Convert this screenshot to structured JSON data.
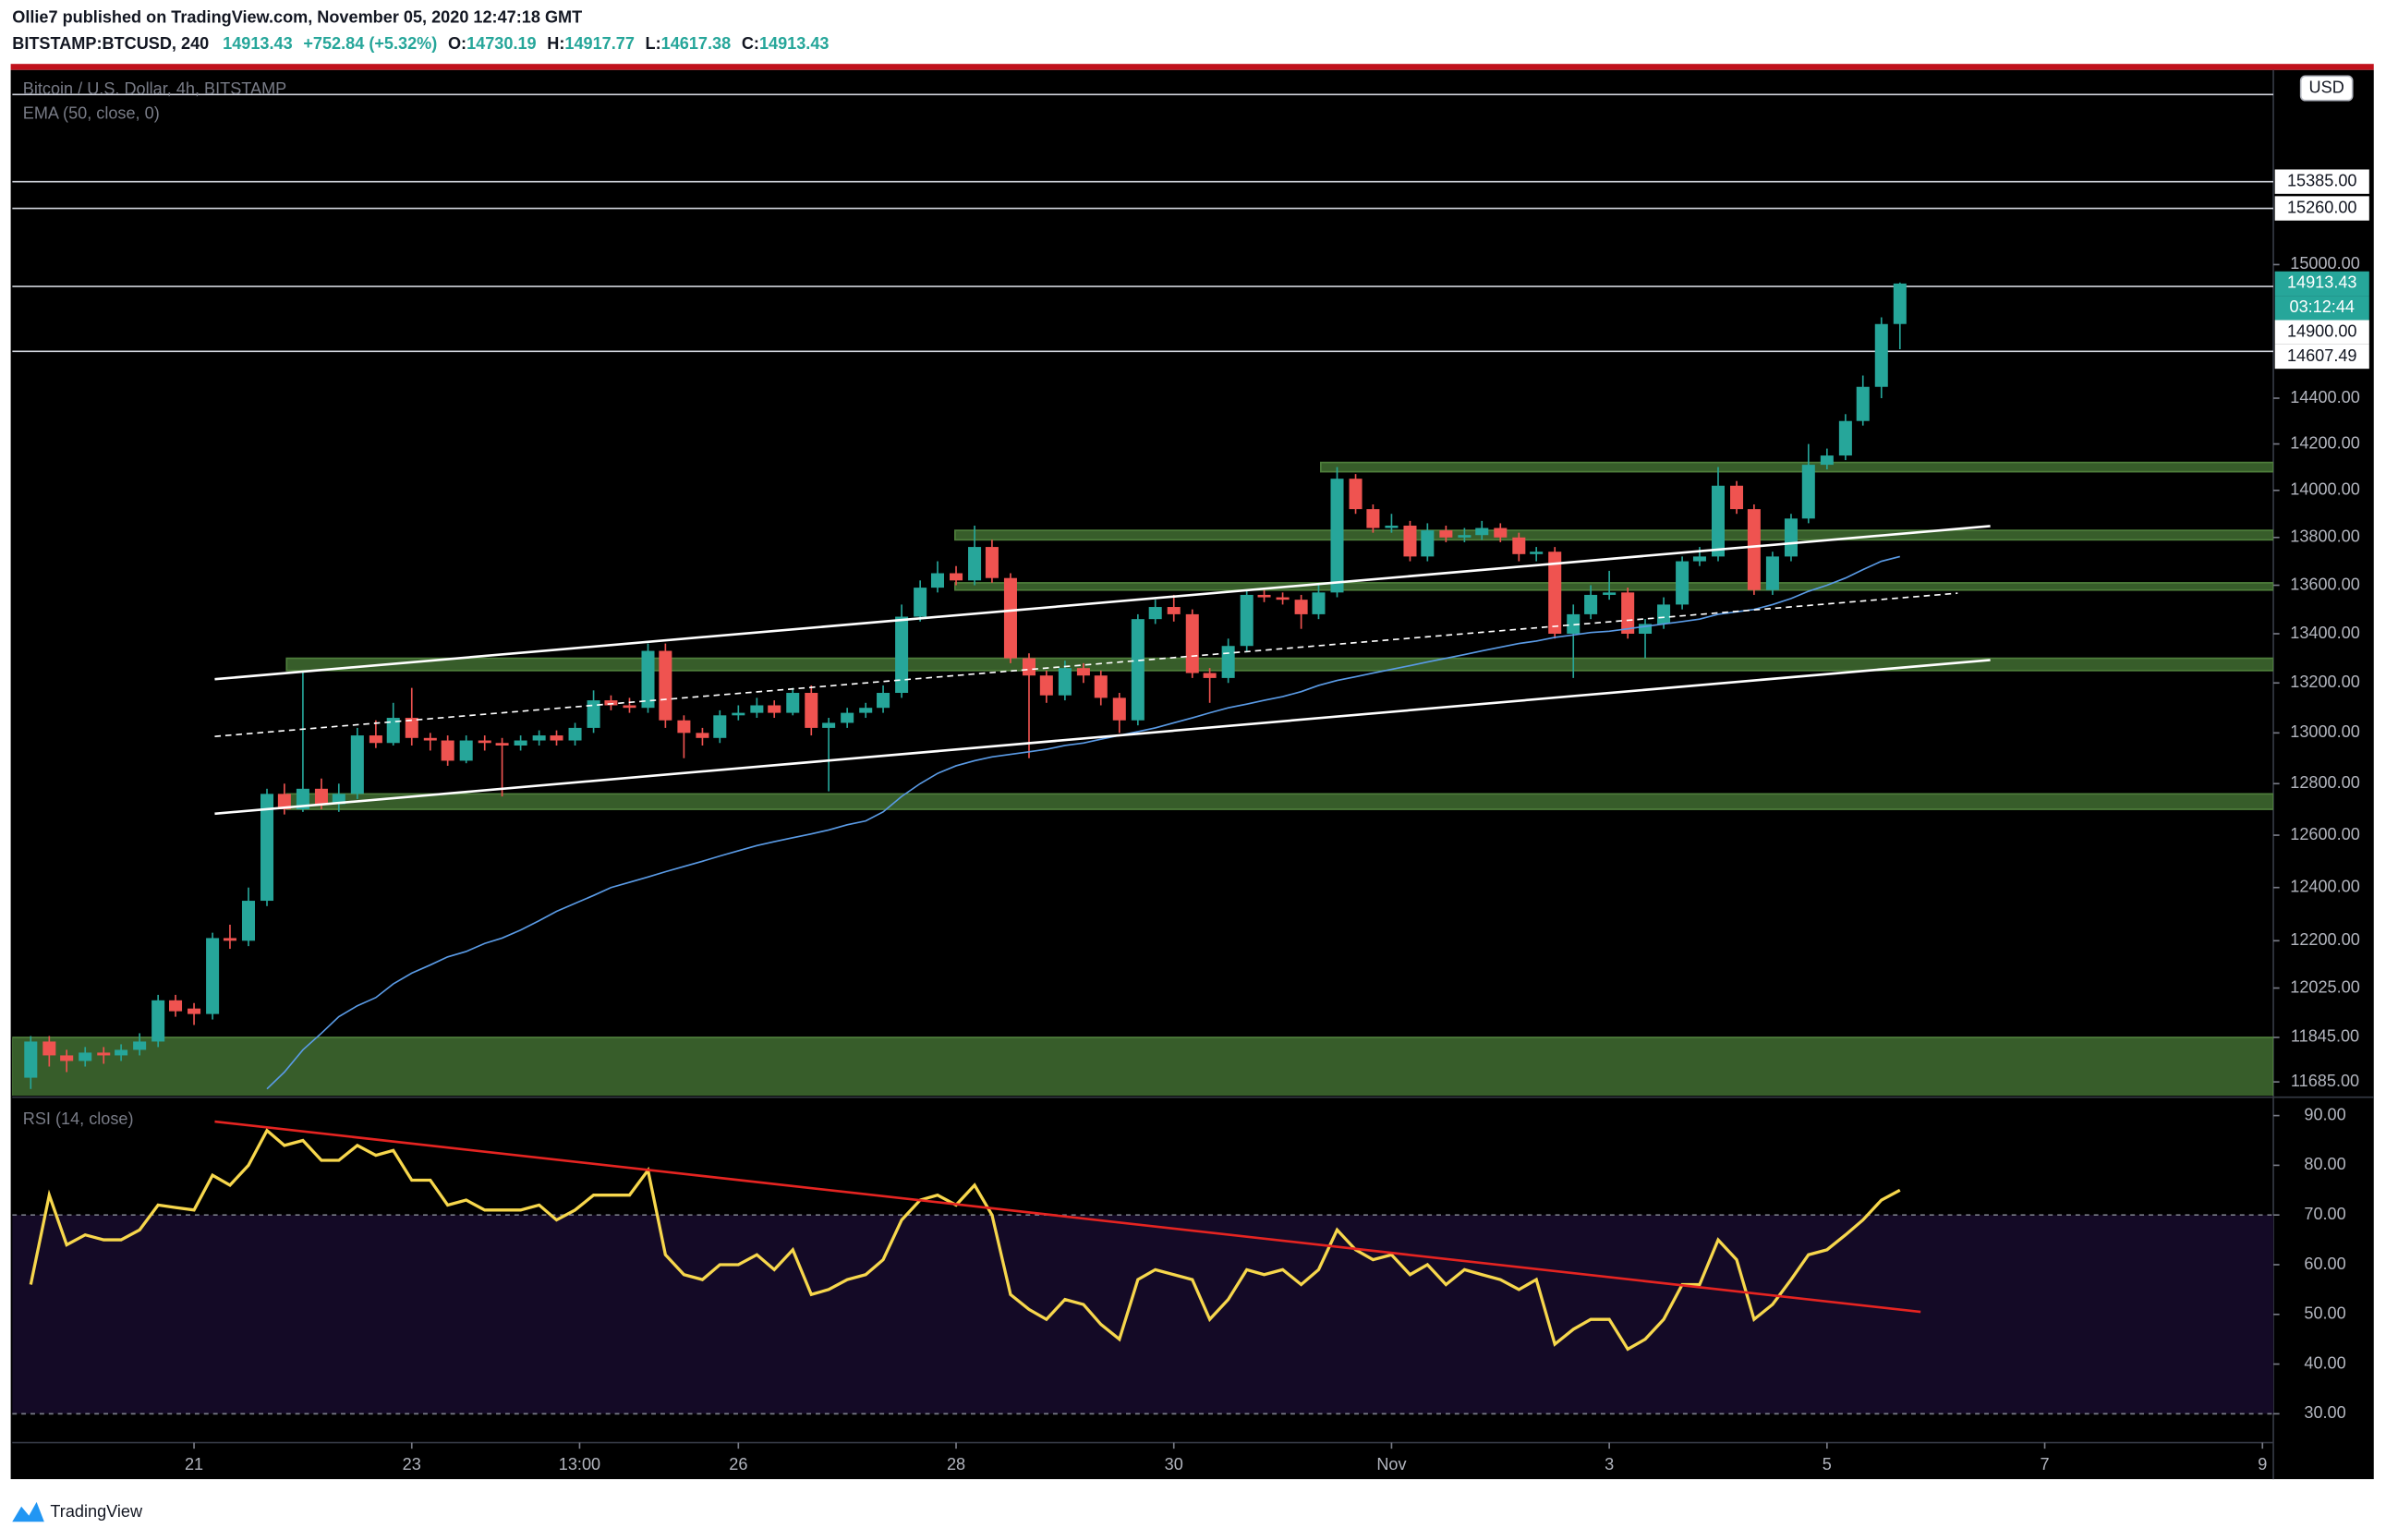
{
  "header": {
    "publisher": "Ollie7 published on TradingView.com, November 05, 2020 12:47:18 GMT",
    "symbol": "BITSTAMP:BTCUSD, 240",
    "change": "+752.84 (+5.32%)",
    "open_label": "O:",
    "high_label": "H:",
    "low_label": "L:",
    "close_label": "C:"
  },
  "footer": {
    "brand": "TradingView"
  },
  "chart_data": [
    {
      "type": "candlestick",
      "title": "Bitcoin / U.S. Dollar, 4h, BITSTAMP",
      "currency": "USD",
      "countdown": "03:12:44",
      "x": [
        19.5,
        19.67,
        19.83,
        20,
        20.17,
        20.33,
        20.5,
        20.67,
        20.83,
        21,
        21.17,
        21.33,
        21.5,
        21.67,
        21.83,
        22,
        22.17,
        22.33,
        22.5,
        22.67,
        22.83,
        23,
        23.17,
        23.33,
        23.5,
        23.67,
        23.83,
        24,
        24.17,
        24.33,
        24.5,
        24.67,
        24.83,
        25,
        25.17,
        25.33,
        25.5,
        25.67,
        25.83,
        26,
        26.17,
        26.33,
        26.5,
        26.67,
        26.83,
        27,
        27.17,
        27.33,
        27.5,
        27.67,
        27.83,
        28,
        28.17,
        28.33,
        28.5,
        28.67,
        28.83,
        29,
        29.17,
        29.33,
        29.5,
        29.67,
        29.83,
        30,
        30.17,
        30.33,
        30.5,
        30.67,
        30.83,
        31,
        31.17,
        31.33,
        31.5,
        31.67,
        31.83,
        32,
        32.17,
        32.33,
        32.5,
        32.67,
        32.83,
        33,
        33.17,
        33.33,
        33.5,
        33.67,
        33.83,
        34,
        34.17,
        34.33,
        34.5,
        34.67,
        34.83,
        35,
        35.17,
        35.33,
        35.5,
        35.67,
        35.83,
        36,
        36.17,
        36.33,
        36.5,
        36.67
      ],
      "series": [
        {
          "name": "BTCUSD",
          "up_color": "#26a69a",
          "down_color": "#ef5350",
          "open": [
            11700,
            11830,
            11780,
            11760,
            11790,
            11780,
            11800,
            11830,
            11980,
            11950,
            11930,
            12210,
            12200,
            12350,
            12760,
            12700,
            12780,
            12720,
            12760,
            12990,
            12960,
            13060,
            12980,
            12970,
            12890,
            12970,
            12960,
            12950,
            12970,
            12990,
            12970,
            13020,
            13130,
            13110,
            13100,
            13330,
            13050,
            13000,
            12980,
            13070,
            13080,
            13110,
            13080,
            13160,
            13020,
            13040,
            13080,
            13100,
            13160,
            13470,
            13590,
            13650,
            13620,
            13760,
            13630,
            13300,
            13230,
            13150,
            13260,
            13230,
            13140,
            13050,
            13460,
            13510,
            13480,
            13240,
            13220,
            13350,
            13560,
            13550,
            13540,
            13480,
            13570,
            14050,
            13920,
            13840,
            13850,
            13720,
            13830,
            13800,
            13810,
            13840,
            13800,
            13730,
            13740,
            13400,
            13480,
            13560,
            13570,
            13400,
            13440,
            13520,
            13700,
            13720,
            14020,
            13920,
            13580,
            13720,
            13880,
            14110,
            14150,
            14300,
            14450,
            14730.19
          ],
          "high": [
            11850,
            11850,
            11800,
            11810,
            11810,
            11820,
            11860,
            12000,
            12000,
            11970,
            12230,
            12260,
            12400,
            12780,
            12800,
            13250,
            12820,
            12800,
            13020,
            13050,
            13120,
            13180,
            13000,
            12990,
            12990,
            12990,
            12980,
            12990,
            13010,
            13010,
            13040,
            13170,
            13150,
            13140,
            13360,
            13360,
            13070,
            13020,
            13090,
            13110,
            13140,
            13130,
            13180,
            13190,
            13060,
            13100,
            13120,
            13190,
            13520,
            13620,
            13700,
            13680,
            13850,
            13790,
            13650,
            13320,
            13250,
            13290,
            13280,
            13250,
            13160,
            13480,
            13540,
            13560,
            13500,
            13260,
            13380,
            13580,
            13580,
            13570,
            13560,
            13600,
            14100,
            14070,
            13940,
            13900,
            13870,
            13860,
            13850,
            13840,
            13870,
            13860,
            13820,
            13760,
            13760,
            13520,
            13600,
            13660,
            13590,
            13460,
            13550,
            13720,
            13760,
            14100,
            14040,
            13940,
            13740,
            13900,
            14200,
            14180,
            14330,
            14500,
            14760,
            14917.77
          ],
          "low": [
            11660,
            11740,
            11720,
            11740,
            11750,
            11760,
            11780,
            11810,
            11920,
            11890,
            11910,
            12170,
            12180,
            12330,
            12680,
            12690,
            12700,
            12690,
            12740,
            12940,
            12950,
            12950,
            12930,
            12870,
            12880,
            12930,
            12750,
            12930,
            12950,
            12950,
            12950,
            13000,
            13090,
            13080,
            13080,
            13020,
            12900,
            12950,
            12960,
            13050,
            13060,
            13060,
            13070,
            12990,
            12770,
            13020,
            13060,
            13080,
            13140,
            13450,
            13570,
            13600,
            13600,
            13610,
            13280,
            12900,
            13120,
            13130,
            13200,
            13110,
            13000,
            13030,
            13440,
            13450,
            13220,
            13120,
            13200,
            13330,
            13530,
            13520,
            13420,
            13460,
            13550,
            13900,
            13820,
            13820,
            13700,
            13700,
            13780,
            13780,
            13790,
            13780,
            13700,
            13700,
            13380,
            13220,
            13460,
            13540,
            13380,
            13300,
            13420,
            13500,
            13680,
            13700,
            13900,
            13560,
            13560,
            13700,
            13860,
            14090,
            14130,
            14280,
            14400,
            14617.38
          ],
          "close": [
            11830,
            11780,
            11760,
            11790,
            11780,
            11800,
            11830,
            11980,
            11940,
            11930,
            12210,
            12200,
            12350,
            12760,
            12700,
            12780,
            12720,
            12760,
            12990,
            12960,
            13060,
            12980,
            12970,
            12890,
            12970,
            12960,
            12950,
            12970,
            12990,
            12970,
            13020,
            13130,
            13110,
            13100,
            13330,
            13050,
            13000,
            12980,
            13070,
            13080,
            13110,
            13080,
            13160,
            13020,
            13040,
            13080,
            13100,
            13160,
            13470,
            13590,
            13650,
            13620,
            13760,
            13630,
            13300,
            13230,
            13150,
            13260,
            13230,
            13140,
            13050,
            13460,
            13510,
            13480,
            13240,
            13220,
            13350,
            13560,
            13550,
            13540,
            13480,
            13570,
            14050,
            13920,
            13840,
            13850,
            13720,
            13830,
            13800,
            13810,
            13840,
            13800,
            13730,
            13740,
            13400,
            13480,
            13560,
            13570,
            13400,
            13440,
            13520,
            13700,
            13720,
            14020,
            13920,
            13580,
            13720,
            13880,
            14110,
            14150,
            14300,
            14450,
            14730,
            14913.43
          ]
        },
        {
          "name": "EMA (50, close, 0)",
          "color": "#5a9be6",
          "values": [
            null,
            null,
            null,
            null,
            null,
            null,
            null,
            null,
            null,
            null,
            null,
            null,
            null,
            11660,
            11720,
            11800,
            11860,
            11920,
            11960,
            11990,
            12040,
            12080,
            12110,
            12140,
            12160,
            12190,
            12210,
            12240,
            12275,
            12310,
            12340,
            12370,
            12400,
            12420,
            12440,
            12460,
            12480,
            12500,
            12520,
            12540,
            12560,
            12575,
            12590,
            12605,
            12620,
            12640,
            12655,
            12690,
            12750,
            12800,
            12840,
            12870,
            12890,
            12905,
            12915,
            12925,
            12935,
            12950,
            12960,
            12975,
            12990,
            13005,
            13020,
            13040,
            13060,
            13080,
            13100,
            13115,
            13130,
            13145,
            13165,
            13190,
            13210,
            13225,
            13240,
            13255,
            13270,
            13285,
            13300,
            13315,
            13330,
            13345,
            13360,
            13370,
            13385,
            13395,
            13405,
            13410,
            13420,
            13430,
            13440,
            13450,
            13460,
            13480,
            13490,
            13500,
            13520,
            13545,
            13575,
            13600,
            13630,
            13665,
            13700,
            13720
          ]
        }
      ],
      "log_scale": true,
      "xlim": [
        19.33,
        40.1
      ],
      "ylim": [
        11636,
        15919
      ],
      "yticks": [
        {
          "value": 15000,
          "label": "15000.00"
        },
        {
          "value": 14400,
          "label": "14400.00"
        },
        {
          "value": 14200,
          "label": "14200.00"
        },
        {
          "value": 14000,
          "label": "14000.00"
        },
        {
          "value": 13800,
          "label": "13800.00"
        },
        {
          "value": 13600,
          "label": "13600.00"
        },
        {
          "value": 13400,
          "label": "13400.00"
        },
        {
          "value": 13200,
          "label": "13200.00"
        },
        {
          "value": 13000,
          "label": "13000.00"
        },
        {
          "value": 12800,
          "label": "12800.00"
        },
        {
          "value": 12600,
          "label": "12600.00"
        },
        {
          "value": 12400,
          "label": "12400.00"
        },
        {
          "value": 12200,
          "label": "12200.00"
        },
        {
          "value": 12025,
          "label": "12025.00"
        },
        {
          "value": 11845,
          "label": "11845.00"
        },
        {
          "value": 11685,
          "label": "11685.00"
        }
      ],
      "xticks": [
        21,
        23,
        {
          "value": 24.5417,
          "label": "13:00"
        },
        26,
        28,
        30,
        {
          "value": 32,
          "label": "Nov"
        },
        {
          "value": 34,
          "label": "3"
        },
        {
          "value": 36,
          "label": "5"
        },
        {
          "value": 38,
          "label": "7"
        },
        {
          "value": 40,
          "label": "9"
        }
      ],
      "price_lines": [
        {
          "value": 15800
        },
        {
          "value": 15385,
          "label": "15385.00"
        },
        {
          "value": 15260,
          "label": "15260.00"
        },
        {
          "value": 14900,
          "label": "14900.00"
        },
        {
          "value": 14607.49,
          "label": "14607.49"
        }
      ],
      "zone_color": "#375d2a",
      "zones": [
        {
          "low": 11630,
          "high": 11845,
          "start": 19.33
        },
        {
          "low": 12700,
          "high": 12760,
          "start": 21.85
        },
        {
          "low": 13250,
          "high": 13300,
          "start": 21.85
        },
        {
          "low": 13580,
          "high": 13610,
          "start": 27.99
        },
        {
          "low": 13790,
          "high": 13830,
          "start": 27.99
        },
        {
          "low": 14080,
          "high": 14120,
          "start": 31.35
        }
      ],
      "trendlines": [
        {
          "points": [
            [
              21.19,
              13215
            ],
            [
              37.5,
              13848
            ]
          ],
          "color": "#ffffff",
          "dashed": false
        },
        {
          "points": [
            [
              21.19,
              12683
            ],
            [
              37.5,
              13293
            ]
          ],
          "color": "#ffffff",
          "dashed": false
        },
        {
          "points": [
            [
              21.19,
              12986
            ],
            [
              37.2,
              13567
            ]
          ],
          "color": "#ffffff",
          "dashed": true
        }
      ]
    },
    {
      "type": "line",
      "series": [
        {
          "name": "RSI (14, close)",
          "color": "#f7d74c",
          "values": [
            56,
            74,
            64,
            66,
            65,
            65,
            67,
            72,
            71.5,
            71,
            78,
            76,
            80,
            87,
            84,
            85,
            81,
            81,
            84,
            82,
            83,
            77,
            77,
            72,
            73,
            71,
            71,
            71,
            72,
            69,
            71,
            74,
            74,
            74,
            79,
            62,
            58,
            57,
            60,
            60,
            62,
            59,
            63,
            54,
            55,
            57,
            58,
            61,
            69,
            73,
            74,
            72,
            76,
            70,
            54,
            51,
            49,
            53,
            52,
            48,
            45,
            57,
            59,
            58,
            57,
            49,
            53,
            59,
            58,
            59,
            56,
            59,
            67,
            63,
            61,
            62,
            58,
            60,
            56,
            59,
            58,
            57,
            55,
            57,
            44,
            47,
            49,
            49,
            43,
            45,
            49,
            56,
            56,
            65,
            61,
            49,
            52,
            57,
            62,
            63,
            66,
            69,
            73,
            75
          ]
        }
      ],
      "ylim": [
        24.2,
        93.4
      ],
      "yticks": [
        {
          "value": 90,
          "label": "90.00"
        },
        {
          "value": 80,
          "label": "80.00"
        },
        {
          "value": 70,
          "label": "70.00"
        },
        {
          "value": 60,
          "label": "60.00"
        },
        {
          "value": 50,
          "label": "50.00"
        },
        {
          "value": 40,
          "label": "40.00"
        },
        {
          "value": 30,
          "label": "30.00"
        }
      ],
      "bands": [
        70,
        30
      ],
      "band_fill": "#140a26",
      "trendlines": [
        {
          "points": [
            [
              21.19,
              88.8
            ],
            [
              36.86,
              50.5
            ]
          ],
          "color": "#e52421",
          "dashed": false
        }
      ]
    }
  ]
}
